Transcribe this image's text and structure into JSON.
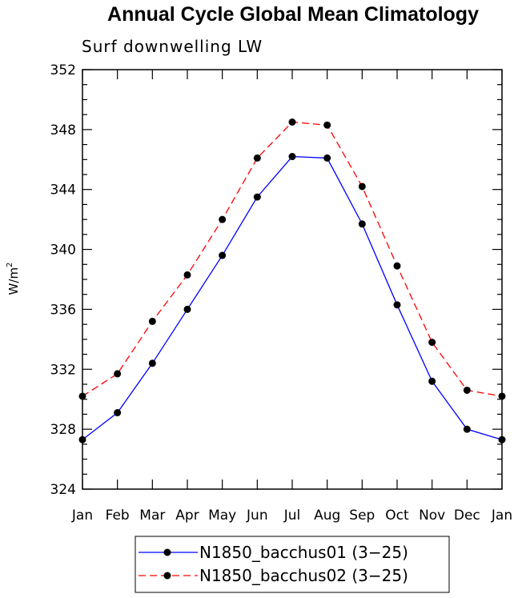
{
  "chart_data": {
    "type": "line",
    "title": "Annual Cycle Global Mean Climatology",
    "subtitle": "Surf downwelling LW",
    "xlabel": "",
    "ylabel": "W/m",
    "ylabel_superscript": "2",
    "categories": [
      "Jan",
      "Feb",
      "Mar",
      "Apr",
      "May",
      "Jun",
      "Jul",
      "Aug",
      "Sep",
      "Oct",
      "Nov",
      "Dec",
      "Jan"
    ],
    "ylim": [
      324,
      352
    ],
    "yticks": [
      324,
      328,
      332,
      336,
      340,
      344,
      348,
      352
    ],
    "ytick_labels": [
      "324",
      "328",
      "332",
      "336",
      "340",
      "344",
      "348",
      "352"
    ],
    "grid": false,
    "legend_position": "bottom-center",
    "series": [
      {
        "name": "N1850_bacchus01 (3−25)",
        "color": "#0000ff",
        "dash": "solid",
        "marker": "filled-circle",
        "values": [
          327.3,
          329.1,
          332.4,
          336.0,
          339.6,
          343.5,
          346.2,
          346.1,
          341.7,
          336.3,
          331.2,
          328.0,
          327.3
        ]
      },
      {
        "name": "N1850_bacchus02 (3−25)",
        "color": "#ff0000",
        "dash": "dashed",
        "marker": "filled-circle",
        "values": [
          330.2,
          331.7,
          335.2,
          338.3,
          342.0,
          346.1,
          348.5,
          348.3,
          344.2,
          338.9,
          333.8,
          330.6,
          330.2
        ]
      }
    ]
  }
}
